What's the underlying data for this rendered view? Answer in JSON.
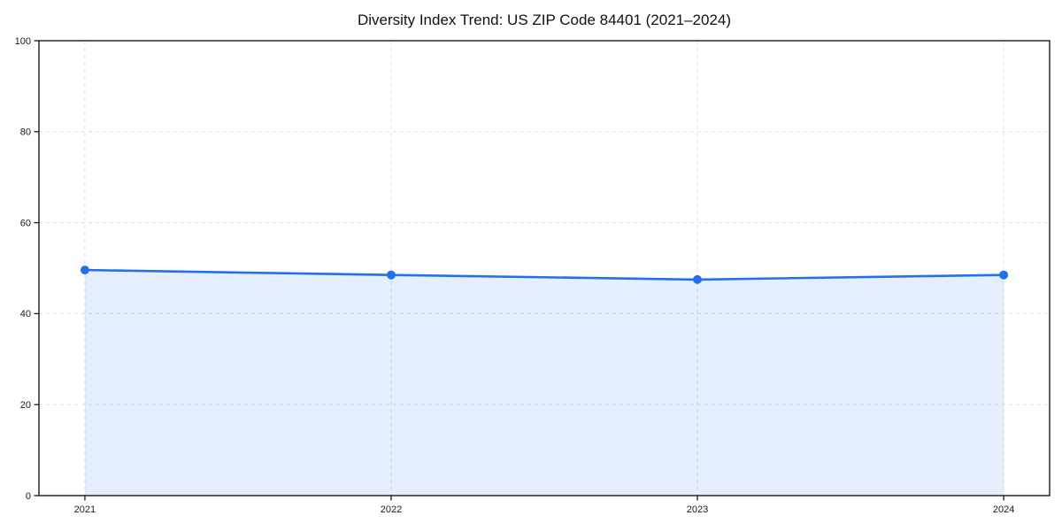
{
  "page": {
    "background": "#ffffff"
  },
  "chart_data": {
    "type": "area",
    "title": "Diversity Index Trend: US ZIP Code 84401 (2021–2024)",
    "x": [
      2021,
      2022,
      2023,
      2024
    ],
    "series": [
      {
        "name": "Diversity Index",
        "values": [
          49.6,
          48.5,
          47.5,
          48.5
        ]
      }
    ],
    "xlabel": "",
    "ylabel": "",
    "xlim": [
      2020.85,
      2024.15
    ],
    "ylim": [
      0,
      100
    ],
    "xticks": [
      2021,
      2022,
      2023,
      2024
    ],
    "yticks": [
      0,
      20,
      40,
      60,
      80,
      100
    ],
    "grid": "dashed",
    "legend": "none",
    "colors": {
      "line": "#2370eb",
      "marker": "#2370eb",
      "fill": "rgba(35,112,235,0.12)",
      "grid": "#dedede",
      "spine": "#1a1a1a",
      "tick": "#1a1a1a",
      "title": "#111111"
    }
  }
}
